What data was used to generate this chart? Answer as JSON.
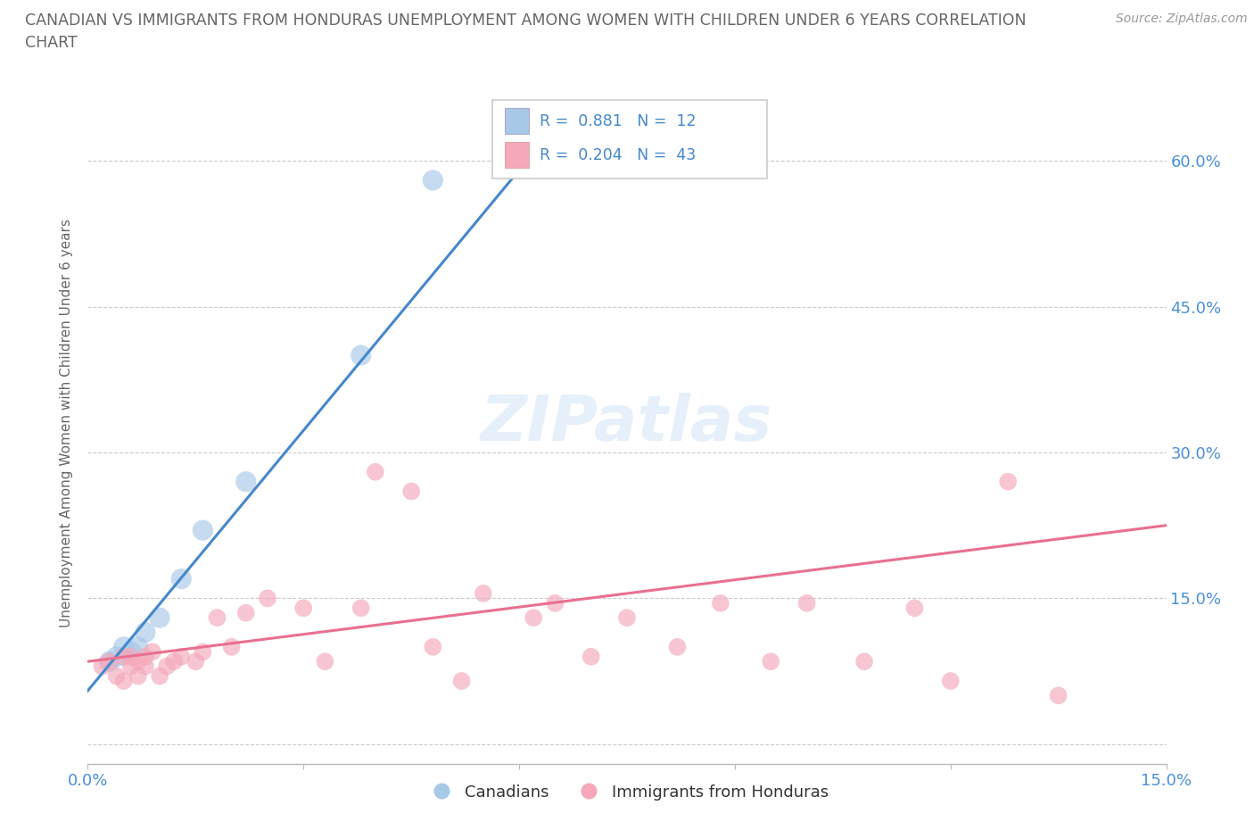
{
  "title_line1": "CANADIAN VS IMMIGRANTS FROM HONDURAS UNEMPLOYMENT AMONG WOMEN WITH CHILDREN UNDER 6 YEARS CORRELATION",
  "title_line2": "CHART",
  "source": "Source: ZipAtlas.com",
  "ylabel": "Unemployment Among Women with Children Under 6 years",
  "xlim": [
    0,
    0.15
  ],
  "ylim": [
    -0.02,
    0.68
  ],
  "xticks": [
    0,
    0.03,
    0.06,
    0.09,
    0.12,
    0.15
  ],
  "yticks": [
    0,
    0.15,
    0.3,
    0.45,
    0.6
  ],
  "xticklabels": [
    "0.0%",
    "",
    "",
    "",
    "",
    "15.0%"
  ],
  "yticklabels_right": [
    "",
    "15.0%",
    "30.0%",
    "45.0%",
    "60.0%"
  ],
  "canadians_x": [
    0.003,
    0.004,
    0.005,
    0.006,
    0.007,
    0.008,
    0.01,
    0.013,
    0.016,
    0.022,
    0.038,
    0.048
  ],
  "canadians_y": [
    0.085,
    0.09,
    0.1,
    0.095,
    0.1,
    0.115,
    0.13,
    0.17,
    0.22,
    0.27,
    0.4,
    0.58
  ],
  "honduras_x": [
    0.002,
    0.003,
    0.004,
    0.005,
    0.005,
    0.006,
    0.006,
    0.007,
    0.007,
    0.008,
    0.008,
    0.009,
    0.01,
    0.011,
    0.012,
    0.013,
    0.015,
    0.016,
    0.018,
    0.02,
    0.022,
    0.025,
    0.03,
    0.033,
    0.038,
    0.04,
    0.045,
    0.048,
    0.052,
    0.055,
    0.062,
    0.065,
    0.07,
    0.075,
    0.082,
    0.088,
    0.095,
    0.1,
    0.108,
    0.115,
    0.12,
    0.128,
    0.135
  ],
  "honduras_y": [
    0.08,
    0.085,
    0.07,
    0.065,
    0.09,
    0.08,
    0.09,
    0.07,
    0.085,
    0.09,
    0.08,
    0.095,
    0.07,
    0.08,
    0.085,
    0.09,
    0.085,
    0.095,
    0.13,
    0.1,
    0.135,
    0.15,
    0.14,
    0.085,
    0.14,
    0.28,
    0.26,
    0.1,
    0.065,
    0.155,
    0.13,
    0.145,
    0.09,
    0.13,
    0.1,
    0.145,
    0.085,
    0.145,
    0.085,
    0.14,
    0.065,
    0.27,
    0.05
  ],
  "blue_line_x": [
    0.0,
    0.065
  ],
  "blue_line_y": [
    0.055,
    0.635
  ],
  "pink_line_x": [
    0.0,
    0.15
  ],
  "pink_line_y": [
    0.085,
    0.225
  ],
  "blue_color": "#a8c8e8",
  "pink_color": "#f4a8ba",
  "blue_line_color": "#4488cc",
  "pink_line_color": "#e87090",
  "legend_r1": "R =  0.881   N =  12",
  "legend_r2": "R =  0.204   N =  43",
  "legend_text_color": "#4488cc",
  "watermark_text": "ZIPatlas",
  "background_color": "#ffffff",
  "grid_color": "#cccccc",
  "title_color": "#666666",
  "axis_label_color": "#666666",
  "tick_label_color": "#4a90d9"
}
